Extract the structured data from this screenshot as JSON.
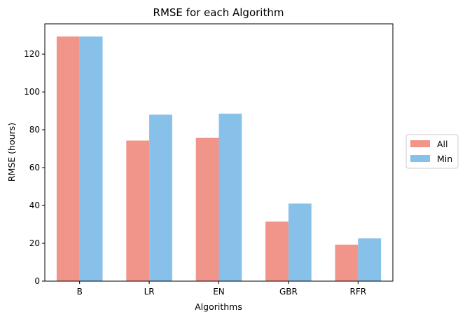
{
  "chart_data": {
    "type": "bar",
    "title": "RMSE for each Algorithm",
    "xlabel": "Algorithms",
    "ylabel": "RMSE (hours)",
    "categories": [
      "B",
      "LR",
      "EN",
      "GBR",
      "RFR"
    ],
    "series": [
      {
        "name": "All",
        "color": "#F1958A",
        "values": [
          129.3,
          74.3,
          75.7,
          31.5,
          19.3
        ]
      },
      {
        "name": "Min",
        "color": "#87C1E9",
        "values": [
          129.3,
          88.0,
          88.5,
          41.0,
          22.6
        ]
      }
    ],
    "ylim": [
      0,
      136
    ],
    "yticks": [
      0,
      20,
      40,
      60,
      80,
      100,
      120
    ],
    "grid": false,
    "legend": "outside-right"
  }
}
